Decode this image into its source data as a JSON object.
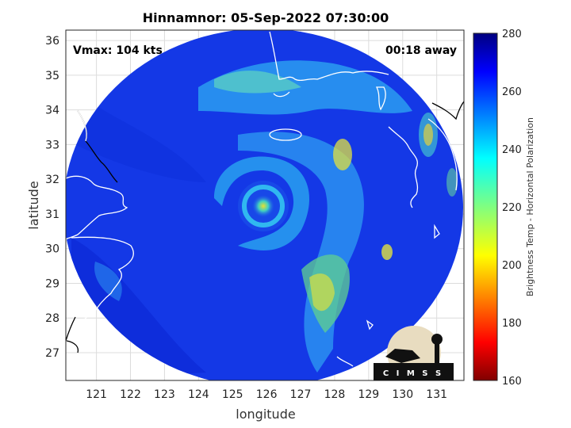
{
  "chart_data": {
    "type": "heatmap",
    "title": "Hinnamnor: 05-Sep-2022 07:30:00",
    "xlabel": "longitude",
    "ylabel": "latitude",
    "xlim": [
      120.1,
      131.8
    ],
    "ylim": [
      26.2,
      36.3
    ],
    "xticks": [
      121,
      122,
      123,
      124,
      125,
      126,
      127,
      128,
      129,
      130,
      131
    ],
    "yticks": [
      27,
      28,
      29,
      30,
      31,
      32,
      33,
      34,
      35,
      36
    ],
    "grid": true,
    "colorbar": {
      "label": "Brightness Temp - Horizontal Polarization",
      "range": [
        160,
        280
      ],
      "ticks": [
        160,
        180,
        200,
        220,
        240,
        260,
        280
      ],
      "colormap": "jet"
    },
    "annotations": {
      "vmax": "Vmax: 104 kts",
      "time_offset": "00:18 away"
    },
    "storm_center": {
      "lon": 126.0,
      "lat": 31.1
    },
    "swath_center": {
      "lon": 125.9,
      "lat": 31.2
    },
    "logo": "C I M S S"
  },
  "colors": {
    "background_field": "#1040e0",
    "eye_core": "#d8e040",
    "coast": "#000000"
  }
}
